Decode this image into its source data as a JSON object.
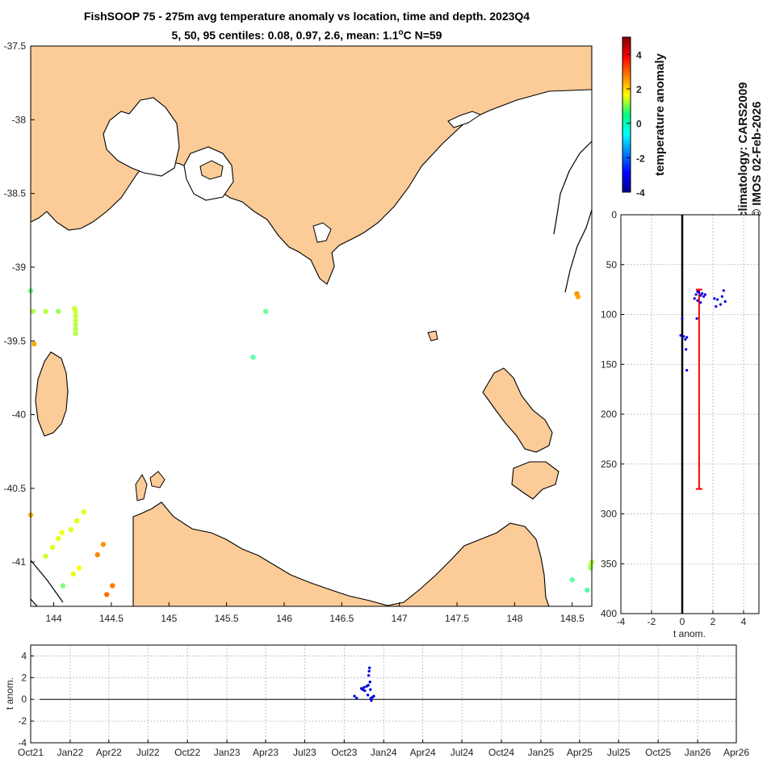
{
  "title": {
    "line1": "FishSOOP 75 - 275m avg temperature anomaly vs location, time and depth. 2023Q4",
    "line2_prefix": "5, 50, 95 centiles: 0.08, 0.97, 2.6, mean: 1.1",
    "line2_degree": "o",
    "line2_suffix": "C N=59"
  },
  "side_text": {
    "colorbar_label": "temperature anomaly",
    "credit_line1": "climatology: CARS2009",
    "credit_line2": "© IMOS 02-Feb-2026"
  },
  "colors": {
    "land": "#fbcb98",
    "ocean": "#ffffff",
    "profile_points": "#0000dd",
    "mean_profile": "#ff0000",
    "zero_line": "#000000",
    "grid": "#b0b0d0"
  },
  "chart_data": [
    {
      "type": "scatter",
      "name": "map",
      "xlim": [
        143.8,
        148.67
      ],
      "ylim": [
        -41.3,
        -37.5
      ],
      "xticks": [
        144,
        144.5,
        145,
        145.5,
        146,
        146.5,
        147,
        147.5,
        148,
        148.5
      ],
      "xtick_labels": [
        "144",
        "144.5",
        "145",
        "145.5",
        "146",
        "146.5",
        "147",
        "147.5",
        "148",
        "148.5"
      ],
      "yticks": [
        -37.5,
        -38,
        -38.5,
        -39,
        -39.5,
        -40,
        -40.5,
        -41
      ],
      "ytick_labels": [
        "-37.5",
        "-38",
        "-38.5",
        "-39",
        "-39.5",
        "-40",
        "-40.5",
        "-41"
      ],
      "grid": false,
      "color_scale": {
        "min": -4,
        "max": 5,
        "colormap": "jet"
      },
      "points": [
        {
          "lon": 143.8,
          "lat": -39.16,
          "anom": 0.4
        },
        {
          "lon": 143.82,
          "lat": -39.3,
          "anom": 0.9
        },
        {
          "lon": 143.93,
          "lat": -39.3,
          "anom": 1.0
        },
        {
          "lon": 144.04,
          "lat": -39.3,
          "anom": 0.8
        },
        {
          "lon": 144.18,
          "lat": -39.28,
          "anom": 1.2
        },
        {
          "lon": 144.19,
          "lat": -39.3,
          "anom": 1.2
        },
        {
          "lon": 144.19,
          "lat": -39.33,
          "anom": 1.1
        },
        {
          "lon": 144.19,
          "lat": -39.36,
          "anom": 1.1
        },
        {
          "lon": 144.19,
          "lat": -39.39,
          "anom": 1.0
        },
        {
          "lon": 144.19,
          "lat": -39.42,
          "anom": 1.0
        },
        {
          "lon": 144.19,
          "lat": -39.45,
          "anom": 1.0
        },
        {
          "lon": 143.83,
          "lat": -39.52,
          "anom": 2.4
        },
        {
          "lon": 145.84,
          "lat": -39.3,
          "anom": 0.3
        },
        {
          "lon": 145.73,
          "lat": -39.61,
          "anom": 0.2
        },
        {
          "lon": 148.54,
          "lat": -39.18,
          "anom": 2.6
        },
        {
          "lon": 148.55,
          "lat": -39.2,
          "anom": 2.4
        },
        {
          "lon": 143.8,
          "lat": -40.68,
          "anom": 2.3
        },
        {
          "lon": 144.26,
          "lat": -40.66,
          "anom": 1.3
        },
        {
          "lon": 144.2,
          "lat": -40.72,
          "anom": 1.4
        },
        {
          "lon": 144.15,
          "lat": -40.78,
          "anom": 1.4
        },
        {
          "lon": 144.07,
          "lat": -40.8,
          "anom": 1.5
        },
        {
          "lon": 144.04,
          "lat": -40.84,
          "anom": 1.4
        },
        {
          "lon": 143.99,
          "lat": -40.9,
          "anom": 1.3
        },
        {
          "lon": 143.93,
          "lat": -40.96,
          "anom": 1.2
        },
        {
          "lon": 144.43,
          "lat": -40.88,
          "anom": 2.6
        },
        {
          "lon": 144.38,
          "lat": -40.95,
          "anom": 2.7
        },
        {
          "lon": 144.22,
          "lat": -41.04,
          "anom": 1.6
        },
        {
          "lon": 144.17,
          "lat": -41.08,
          "anom": 1.4
        },
        {
          "lon": 144.08,
          "lat": -41.16,
          "anom": 0.5
        },
        {
          "lon": 144.51,
          "lat": -41.16,
          "anom": 2.8
        },
        {
          "lon": 144.46,
          "lat": -41.22,
          "anom": 2.9
        },
        {
          "lon": 148.5,
          "lat": -41.12,
          "anom": 0.2
        },
        {
          "lon": 148.67,
          "lat": -41.0,
          "anom": 0.9
        },
        {
          "lon": 148.66,
          "lat": -41.02,
          "anom": 1.0
        },
        {
          "lon": 148.66,
          "lat": -41.04,
          "anom": 0.8
        },
        {
          "lon": 148.63,
          "lat": -41.19,
          "anom": 0.1
        }
      ]
    },
    {
      "type": "scatter",
      "name": "depth_profile",
      "xlabel": "t anom.",
      "xlim": [
        -4,
        5
      ],
      "ylim": [
        0,
        400
      ],
      "y_reversed": true,
      "xticks": [
        -4,
        -2,
        0,
        2,
        4
      ],
      "xtick_labels": [
        "-4",
        "-2",
        "0",
        "2",
        "4"
      ],
      "yticks": [
        0,
        50,
        100,
        150,
        200,
        250,
        300,
        350,
        400
      ],
      "ytick_labels": [
        "0",
        "50",
        "100",
        "150",
        "200",
        "250",
        "300",
        "350",
        "400"
      ],
      "grid": true,
      "points": [
        {
          "t": 1.0,
          "z": 77
        },
        {
          "t": 1.1,
          "z": 78
        },
        {
          "t": 1.3,
          "z": 79
        },
        {
          "t": 0.9,
          "z": 80
        },
        {
          "t": 1.2,
          "z": 81
        },
        {
          "t": 1.4,
          "z": 82
        },
        {
          "t": 0.8,
          "z": 84
        },
        {
          "t": 1.0,
          "z": 86
        },
        {
          "t": 1.5,
          "z": 80
        },
        {
          "t": 1.2,
          "z": 88
        },
        {
          "t": 2.7,
          "z": 76
        },
        {
          "t": 2.6,
          "z": 82
        },
        {
          "t": 2.3,
          "z": 85
        },
        {
          "t": 2.1,
          "z": 84
        },
        {
          "t": 2.5,
          "z": 90
        },
        {
          "t": 2.2,
          "z": 92
        },
        {
          "t": 2.8,
          "z": 87
        },
        {
          "t": 0.95,
          "z": 104
        },
        {
          "t": 0.0,
          "z": 104
        },
        {
          "t": -0.1,
          "z": 121
        },
        {
          "t": 0.1,
          "z": 122
        },
        {
          "t": 0.3,
          "z": 123
        },
        {
          "t": 0.2,
          "z": 125
        },
        {
          "t": 0.25,
          "z": 135
        },
        {
          "t": 0.3,
          "z": 156
        }
      ],
      "mean_profile": {
        "t": 1.1,
        "z_top": 75,
        "z_bottom": 275
      }
    },
    {
      "type": "scatter",
      "name": "time_series",
      "ylabel": "t anom.",
      "xlim": [
        "2021-10-01",
        "2026-04-01"
      ],
      "ylim": [
        -4,
        5
      ],
      "xticks": [
        "2021-10-01",
        "2022-01-01",
        "2022-04-01",
        "2022-07-01",
        "2022-10-01",
        "2023-01-01",
        "2023-04-01",
        "2023-07-01",
        "2023-10-01",
        "2024-01-01",
        "2024-04-01",
        "2024-07-01",
        "2024-10-01",
        "2025-01-01",
        "2025-04-01",
        "2025-07-01",
        "2025-10-01",
        "2026-01-01",
        "2026-04-01"
      ],
      "xtick_labels": [
        "Oct21",
        "Jan22",
        "Apr22",
        "Jul22",
        "Oct22",
        "Jan23",
        "Apr23",
        "Jul23",
        "Oct23",
        "Jan24",
        "Apr24",
        "Jul24",
        "Oct24",
        "Jan25",
        "Apr25",
        "Jul25",
        "Oct25",
        "Jan26",
        "Apr26"
      ],
      "yticks": [
        -4,
        -2,
        0,
        2,
        4
      ],
      "ytick_labels": [
        "-4",
        "-2",
        "0",
        "2",
        "4"
      ],
      "grid": true,
      "points": [
        {
          "date": "2023-10-25",
          "t": 0.3
        },
        {
          "date": "2023-10-30",
          "t": 0.1
        },
        {
          "date": "2023-11-10",
          "t": 1.0
        },
        {
          "date": "2023-11-13",
          "t": 0.9
        },
        {
          "date": "2023-11-16",
          "t": 1.1
        },
        {
          "date": "2023-11-18",
          "t": 0.8
        },
        {
          "date": "2023-11-22",
          "t": 1.2
        },
        {
          "date": "2023-11-25",
          "t": 0.4
        },
        {
          "date": "2023-11-27",
          "t": 2.2
        },
        {
          "date": "2023-11-28",
          "t": 2.6
        },
        {
          "date": "2023-11-29",
          "t": 2.9
        },
        {
          "date": "2023-11-30",
          "t": 1.6
        },
        {
          "date": "2023-12-01",
          "t": 0.9
        },
        {
          "date": "2023-12-02",
          "t": 0.1
        },
        {
          "date": "2023-12-03",
          "t": -0.1
        },
        {
          "date": "2023-12-06",
          "t": 0.2
        },
        {
          "date": "2023-12-09",
          "t": 0.3
        },
        {
          "date": "2023-11-26",
          "t": 1.3
        }
      ]
    }
  ]
}
